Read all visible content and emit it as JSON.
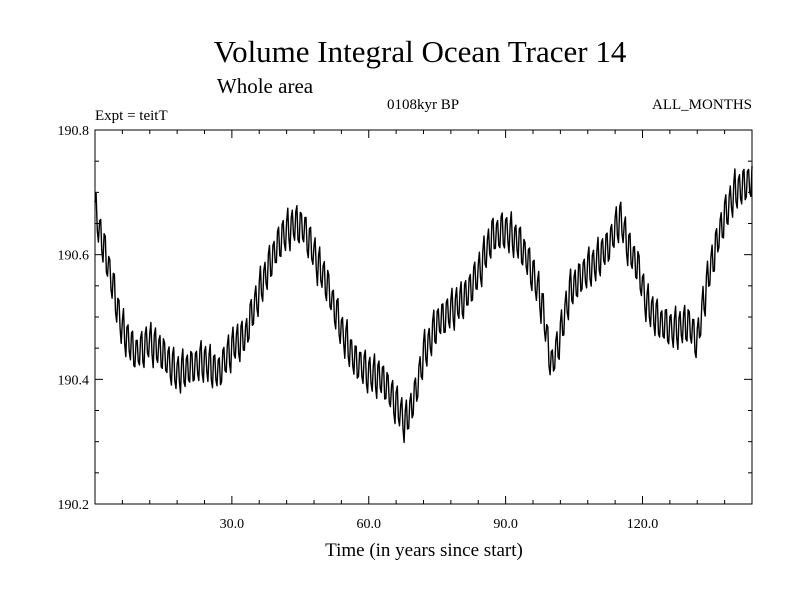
{
  "chart_data": {
    "type": "line",
    "title": "Volume Integral Ocean Tracer 14",
    "subtitle": "Whole area",
    "expt_label": "Expt = teitT",
    "period_label": "0108kyr BP",
    "months_label": "ALL_MONTHS",
    "xlabel": "Time (in years since start)",
    "ylabel": "",
    "xlim": [
      0,
      144
    ],
    "ylim": [
      190.2,
      190.8
    ],
    "x_ticks": [
      30,
      60,
      90,
      120
    ],
    "x_tick_labels": [
      "30.0",
      "60.0",
      "90.0",
      "120.0"
    ],
    "y_ticks": [
      190.2,
      190.4,
      190.6,
      190.8
    ],
    "y_tick_labels": [
      "190.2",
      "190.4",
      "190.6",
      "190.8"
    ],
    "legend": "none",
    "grid": false,
    "line_color": "#000000",
    "samples_per_year": 4,
    "trend": [
      [
        0,
        190.67
      ],
      [
        3,
        190.58
      ],
      [
        6,
        190.48
      ],
      [
        9,
        190.44
      ],
      [
        12,
        190.46
      ],
      [
        15,
        190.44
      ],
      [
        18,
        190.41
      ],
      [
        21,
        190.42
      ],
      [
        24,
        190.43
      ],
      [
        27,
        190.41
      ],
      [
        30,
        190.45
      ],
      [
        33,
        190.47
      ],
      [
        35,
        190.52
      ],
      [
        38,
        190.58
      ],
      [
        41,
        190.63
      ],
      [
        44,
        190.65
      ],
      [
        46,
        190.64
      ],
      [
        48,
        190.6
      ],
      [
        51,
        190.55
      ],
      [
        54,
        190.48
      ],
      [
        57,
        190.43
      ],
      [
        60,
        190.41
      ],
      [
        63,
        190.4
      ],
      [
        66,
        190.36
      ],
      [
        68,
        190.33
      ],
      [
        70,
        190.37
      ],
      [
        72,
        190.44
      ],
      [
        75,
        190.49
      ],
      [
        78,
        190.51
      ],
      [
        81,
        190.53
      ],
      [
        84,
        190.57
      ],
      [
        87,
        190.63
      ],
      [
        90,
        190.64
      ],
      [
        93,
        190.62
      ],
      [
        96,
        190.57
      ],
      [
        98,
        190.52
      ],
      [
        100,
        190.42
      ],
      [
        102,
        190.47
      ],
      [
        104,
        190.54
      ],
      [
        107,
        190.57
      ],
      [
        110,
        190.59
      ],
      [
        113,
        190.62
      ],
      [
        115,
        190.66
      ],
      [
        117,
        190.61
      ],
      [
        119,
        190.58
      ],
      [
        121,
        190.52
      ],
      [
        124,
        190.49
      ],
      [
        127,
        190.48
      ],
      [
        130,
        190.49
      ],
      [
        132,
        190.46
      ],
      [
        134,
        190.55
      ],
      [
        137,
        190.64
      ],
      [
        140,
        190.7
      ],
      [
        144,
        190.72
      ]
    ],
    "seasonal_amplitude": 0.045
  }
}
